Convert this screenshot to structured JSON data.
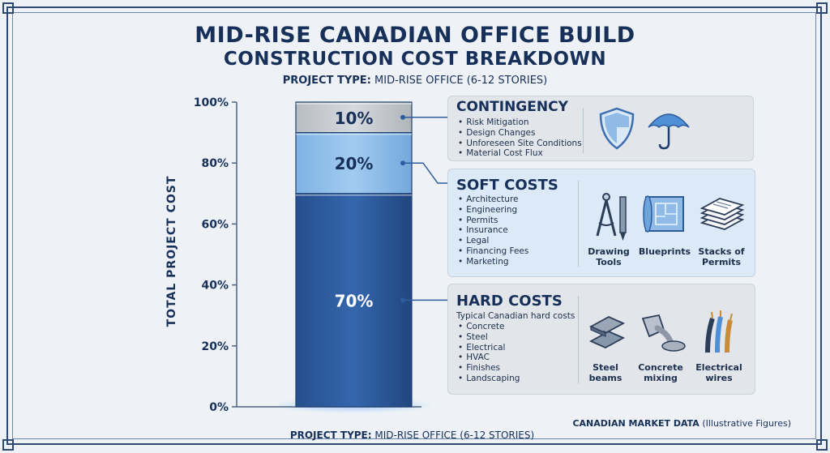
{
  "header": {
    "title_line1": "MID-RISE CANADIAN OFFICE BUILD",
    "title_line2": "CONSTRUCTION COST BREAKDOWN",
    "project_type_label": "PROJECT TYPE:",
    "project_type_value": "MID-RISE OFFICE (6-12 STORIES)"
  },
  "chart_data": {
    "type": "bar",
    "stacked": true,
    "ylabel": "TOTAL PROJECT COST",
    "ylim": [
      0,
      100
    ],
    "ytick_labels": [
      "0%",
      "20%",
      "40%",
      "60%",
      "80%",
      "100%"
    ],
    "ytick_values": [
      0,
      20,
      40,
      60,
      80,
      100
    ],
    "grid": false,
    "series": [
      {
        "name": "HARD COSTS",
        "value": 70,
        "label": "70%",
        "color": "#2f5da1"
      },
      {
        "name": "SOFT COSTS",
        "value": 20,
        "label": "20%",
        "color": "#8cbce8"
      },
      {
        "name": "CONTINGENCY",
        "value": 10,
        "label": "10%",
        "color": "#c6cacf"
      }
    ]
  },
  "panels": {
    "contingency": {
      "title": "CONTINGENCY",
      "items": [
        "Risk Mitigation",
        "Design Changes",
        "Unforeseen Site Conditions",
        "Material Cost Flux"
      ],
      "icons": [
        "shield-icon",
        "umbrella-icon"
      ]
    },
    "soft": {
      "title": "SOFT COSTS",
      "items": [
        "Architecture",
        "Engineering",
        "Permits",
        "Insurance",
        "Legal",
        "Financing Fees",
        "Marketing"
      ],
      "icon_labels": {
        "drawing_tools": "Drawing Tools",
        "blueprints": "Blueprints",
        "permits": "Stacks of Permits"
      }
    },
    "hard": {
      "title": "HARD COSTS",
      "note": "Typical Canadian hard costs",
      "items": [
        "Concrete",
        "Steel",
        "Electrical",
        "HVAC",
        "Finishes",
        "Landscaping"
      ],
      "icon_labels": {
        "steel": "Steel beams",
        "concrete": "Concrete mixing",
        "wires": "Electrical wires"
      }
    }
  },
  "footer": {
    "project_type_label": "PROJECT TYPE:",
    "project_type_value": "MID-RISE OFFICE (6-12 STORIES)",
    "market_label": "CANADIAN MARKET DATA",
    "market_note": "(Illustrative Figures)"
  }
}
